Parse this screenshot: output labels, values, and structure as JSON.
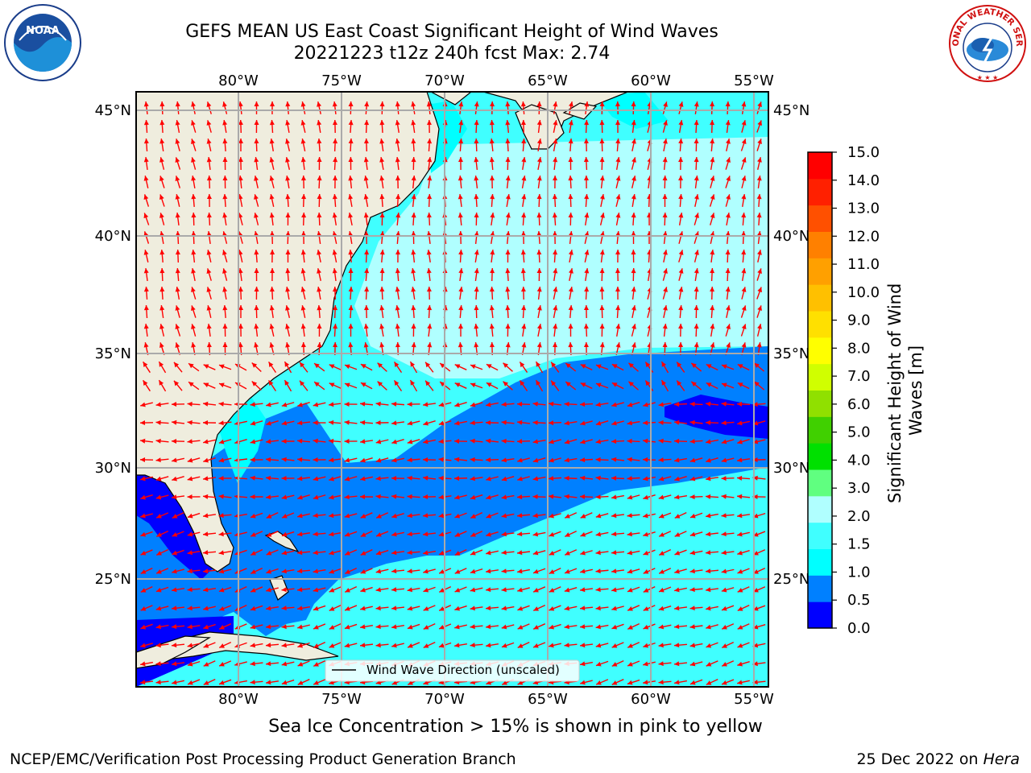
{
  "header": {
    "title_line1": "GEFS MEAN US East Coast Significant Height of Wind Waves",
    "title_line2": "20221223 t12z 240h fcst   Max: 2.74"
  },
  "logos": {
    "left": "noaa-logo",
    "right": "nws-logo",
    "nws_text": "NATIONAL WEATHER SERVICE"
  },
  "map": {
    "lon_labels": [
      "80°W",
      "75°W",
      "70°W",
      "65°W",
      "60°W",
      "55°W"
    ],
    "lat_labels": [
      "45°N",
      "40°N",
      "35°N",
      "30°N",
      "25°N"
    ],
    "legend_label": "Wind Wave Direction (unscaled)",
    "land_color": "#efedde",
    "arrow_color": "#ff0000"
  },
  "colorbar": {
    "label": "Significant Height of Wind Waves [m]",
    "label_line1": "Significant Height of Wind",
    "label_line2": "Waves [m]",
    "ticks": [
      "15.0",
      "14.0",
      "13.0",
      "12.0",
      "11.0",
      "10.0",
      "9.0",
      "8.0",
      "7.0",
      "6.0",
      "5.0",
      "4.0",
      "3.0",
      "2.0",
      "1.5",
      "1.0",
      "0.5",
      "0.0"
    ],
    "colors": [
      "#0000ff",
      "#0080ff",
      "#00ffff",
      "#40ffff",
      "#b0ffff",
      "#60ff80",
      "#00e000",
      "#40d000",
      "#90e000",
      "#d0ff00",
      "#ffff00",
      "#ffe000",
      "#ffc000",
      "#ffa000",
      "#ff8000",
      "#ff5000",
      "#ff2000",
      "#ff0000"
    ]
  },
  "footer": {
    "ice_note": "Sea Ice Concentration > 15% is shown in pink to yellow",
    "credit": "NCEP/EMC/Verification Post Processing Product Generation Branch",
    "date": "25 Dec 2022 on ",
    "machine": "Hera"
  }
}
